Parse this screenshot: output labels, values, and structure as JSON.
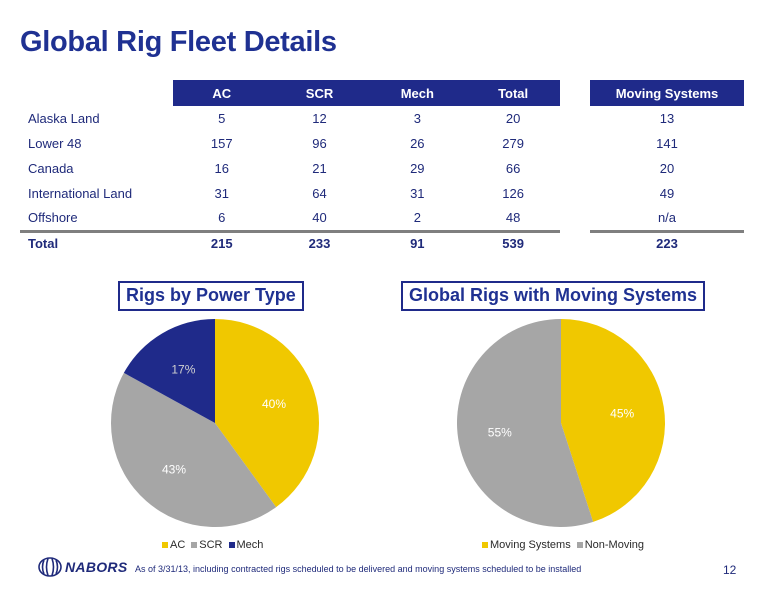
{
  "title": "Global Rig Fleet Details",
  "fleet_table": {
    "headers": [
      "AC",
      "SCR",
      "Mech",
      "Total"
    ],
    "rows": [
      {
        "label": "Alaska Land",
        "ac": "5",
        "scr": "12",
        "mech": "3",
        "total": "20"
      },
      {
        "label": "Lower 48",
        "ac": "157",
        "scr": "96",
        "mech": "26",
        "total": "279"
      },
      {
        "label": "Canada",
        "ac": "16",
        "scr": "21",
        "mech": "29",
        "total": "66"
      },
      {
        "label": "International Land",
        "ac": "31",
        "scr": "64",
        "mech": "31",
        "total": "126"
      },
      {
        "label": "Offshore",
        "ac": "6",
        "scr": "40",
        "mech": "2",
        "total": "48"
      }
    ],
    "total_row": {
      "label": "Total",
      "ac": "215",
      "scr": "233",
      "mech": "91",
      "total": "539"
    }
  },
  "moving_table": {
    "header": "Moving Systems",
    "values": [
      "13",
      "141",
      "20",
      "49",
      "n/a"
    ],
    "total": "223"
  },
  "colors": {
    "navy": "#1f2a8a",
    "yellow": "#f0c800",
    "gray": "#a6a6a6"
  },
  "chart_data": [
    {
      "type": "pie",
      "title": "Rigs by Power Type",
      "categories": [
        "AC",
        "SCR",
        "Mech"
      ],
      "values": [
        40,
        43,
        17
      ],
      "labels": [
        "40%",
        "43%",
        "17%"
      ],
      "colors": [
        "#f0c800",
        "#a6a6a6",
        "#1f2a8a"
      ],
      "legend": "bottom"
    },
    {
      "type": "pie",
      "title": "Global Rigs with Moving Systems",
      "categories": [
        "Moving Systems",
        "Non-Moving"
      ],
      "values": [
        45,
        55
      ],
      "labels": [
        "45%",
        "55%"
      ],
      "colors": [
        "#f0c800",
        "#a6a6a6"
      ],
      "legend": "bottom"
    }
  ],
  "footer": {
    "logo": "NABORS",
    "footnote": "As of  3/31/13, including contracted rigs scheduled to be delivered and moving systems scheduled to be installed",
    "page_number": "12"
  }
}
